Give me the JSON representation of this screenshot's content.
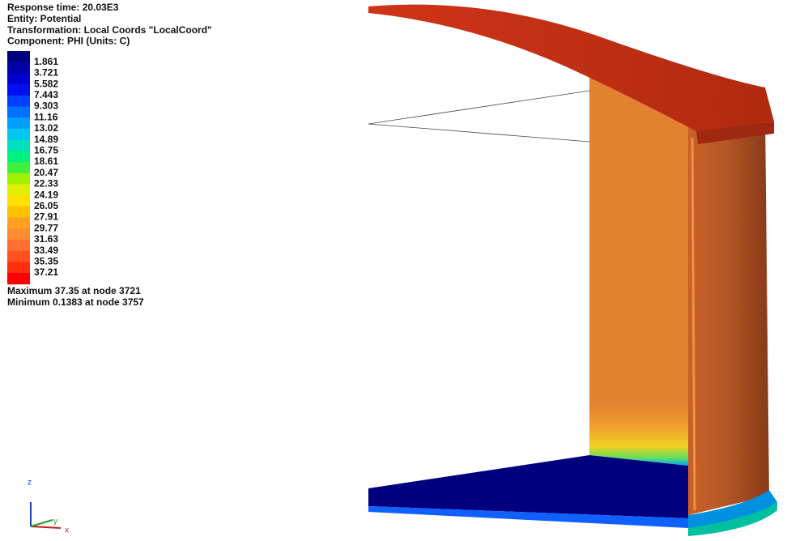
{
  "header": {
    "lines": [
      "Response time: 20.03E3",
      "Entity: Potential",
      "Transformation: Local Coords \"LocalCoord\"",
      "Component: PHI (Units: C)"
    ]
  },
  "legend": {
    "colors": [
      "#00007f",
      "#0000a8",
      "#0000d0",
      "#0010f0",
      "#0040ff",
      "#0070ff",
      "#00a0ff",
      "#00c8f0",
      "#00e0c0",
      "#00f080",
      "#40f040",
      "#a0f000",
      "#e0f000",
      "#ffe000",
      "#ffc000",
      "#ffa020",
      "#ff8c30",
      "#ff7030",
      "#ff5020",
      "#ff3010",
      "#ff0000"
    ],
    "labels": [
      "1.861",
      "3.721",
      "5.582",
      "7.443",
      "9.303",
      "11.16",
      "13.02",
      "14.89",
      "16.75",
      "18.61",
      "20.47",
      "22.33",
      "24.19",
      "26.05",
      "27.91",
      "29.77",
      "31.63",
      "33.49",
      "35.35",
      "37.21"
    ]
  },
  "summary": {
    "lines": [
      "Maximum 37.35 at node 3721",
      "Minimum 0.1383 at node 3757"
    ]
  },
  "triad": {
    "z": "z",
    "y": "y",
    "x": "x"
  }
}
